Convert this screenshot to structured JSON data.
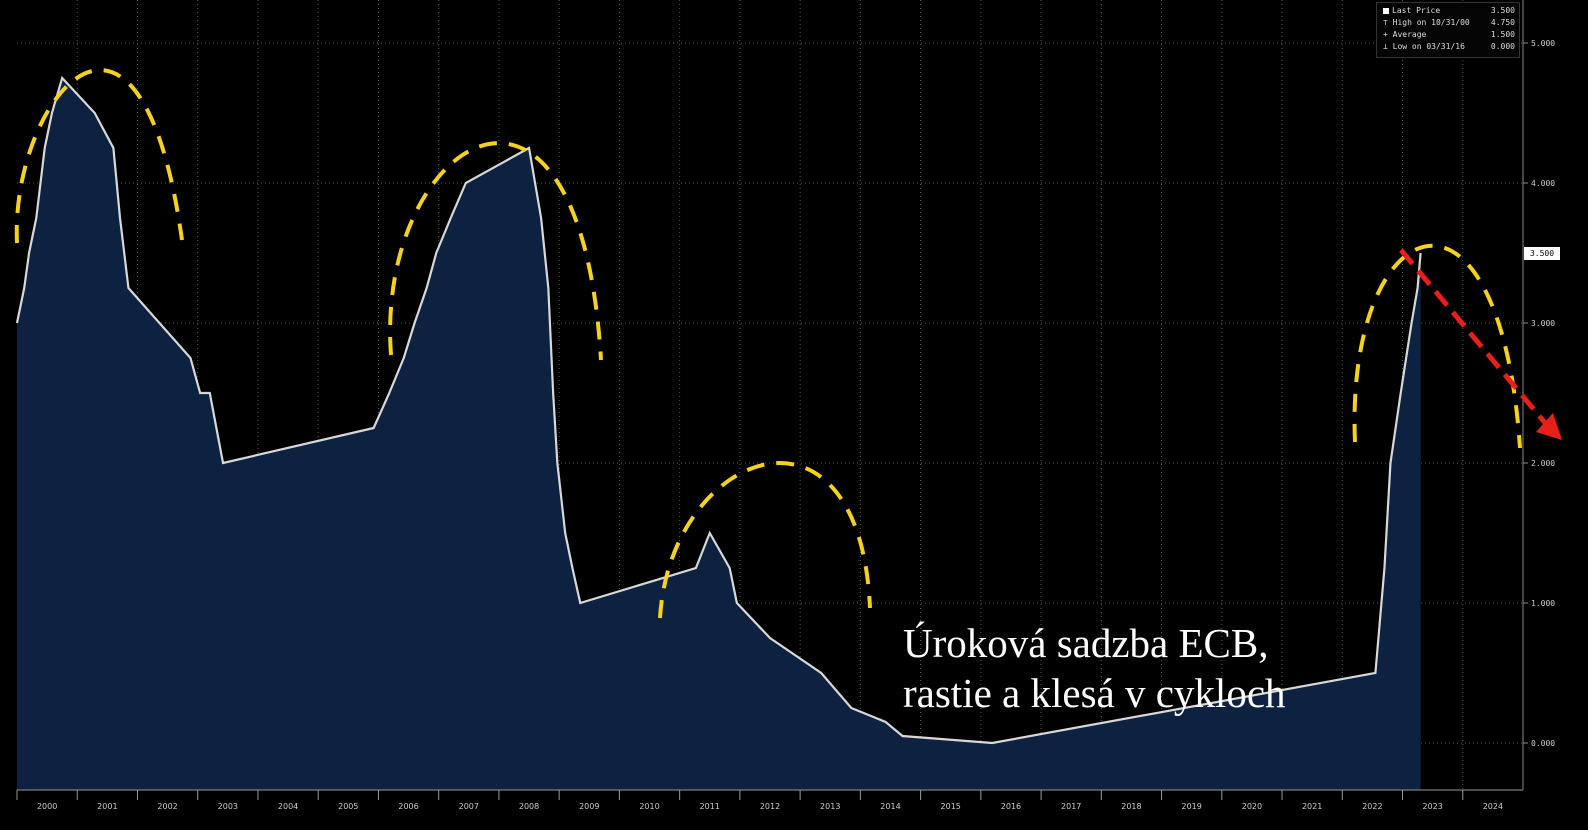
{
  "chart_data": {
    "type": "area",
    "title": "",
    "xlabel": "",
    "ylabel": "",
    "xlim": [
      2000.0,
      2025.0
    ],
    "ylim": [
      -0.3,
      5.2
    ],
    "y_ticks": [
      0,
      1,
      2,
      3,
      4,
      5
    ],
    "y_tick_labels": [
      "0.000",
      "1.000",
      "2.000",
      "3.000",
      "4.000",
      "5.000"
    ],
    "x_tick_labels": [
      "2000",
      "2001",
      "2002",
      "2003",
      "2004",
      "2005",
      "2006",
      "2007",
      "2008",
      "2009",
      "2010",
      "2011",
      "2012",
      "2013",
      "2014",
      "2015",
      "2016",
      "2017",
      "2018",
      "2019",
      "2020",
      "2021",
      "2022",
      "2023",
      "2024"
    ],
    "grid": true,
    "series": [
      {
        "points": [
          [
            2000.0,
            3.0
          ],
          [
            2000.12,
            3.25
          ],
          [
            2000.2,
            3.5
          ],
          [
            2000.32,
            3.75
          ],
          [
            2000.46,
            4.25
          ],
          [
            2000.58,
            4.5
          ],
          [
            2000.75,
            4.75
          ],
          [
            2001.29,
            4.5
          ],
          [
            2001.6,
            4.25
          ],
          [
            2001.71,
            3.75
          ],
          [
            2001.78,
            3.5
          ],
          [
            2001.85,
            3.25
          ],
          [
            2002.88,
            2.75
          ],
          [
            2003.04,
            2.5
          ],
          [
            2003.2,
            2.5
          ],
          [
            2003.42,
            2.0
          ],
          [
            2005.92,
            2.25
          ],
          [
            2006.18,
            2.5
          ],
          [
            2006.42,
            2.75
          ],
          [
            2006.6,
            3.0
          ],
          [
            2006.8,
            3.25
          ],
          [
            2006.96,
            3.5
          ],
          [
            2007.2,
            3.75
          ],
          [
            2007.45,
            4.0
          ],
          [
            2008.5,
            4.25
          ],
          [
            2008.7,
            3.75
          ],
          [
            2008.82,
            3.25
          ],
          [
            2008.9,
            2.5
          ],
          [
            2008.97,
            2.0
          ],
          [
            2009.1,
            1.5
          ],
          [
            2009.22,
            1.25
          ],
          [
            2009.35,
            1.0
          ],
          [
            2011.27,
            1.25
          ],
          [
            2011.5,
            1.5
          ],
          [
            2011.83,
            1.25
          ],
          [
            2011.95,
            1.0
          ],
          [
            2012.5,
            0.75
          ],
          [
            2013.35,
            0.5
          ],
          [
            2013.85,
            0.25
          ],
          [
            2014.42,
            0.15
          ],
          [
            2014.7,
            0.05
          ],
          [
            2016.19,
            0.0
          ],
          [
            2022.55,
            0.5
          ],
          [
            2022.7,
            1.25
          ],
          [
            2022.8,
            2.0
          ],
          [
            2022.97,
            2.5
          ],
          [
            2023.15,
            3.0
          ],
          [
            2023.25,
            3.25
          ],
          [
            2023.3,
            3.5
          ],
          [
            2023.3,
            3.5
          ]
        ]
      }
    ],
    "legend": [
      {
        "label": "Last Price",
        "value": "3.500"
      },
      {
        "label": "High on 10/31/00",
        "value": "4.750"
      },
      {
        "label": "Average",
        "value": "1.500"
      },
      {
        "label": "Low on 03/31/16",
        "value": "0.000"
      }
    ],
    "last_value_tag": "3.500",
    "annotation": [
      "Úroková sadzba ECB,",
      "rastie a klesá v cykloch"
    ],
    "colors": {
      "fill": "#0d2240",
      "line": "#d8d8d8",
      "dashed_arcs": "#f5d21f",
      "arrow": "#e8201c",
      "background": "#000000",
      "grid": "#5a5a5a"
    }
  }
}
